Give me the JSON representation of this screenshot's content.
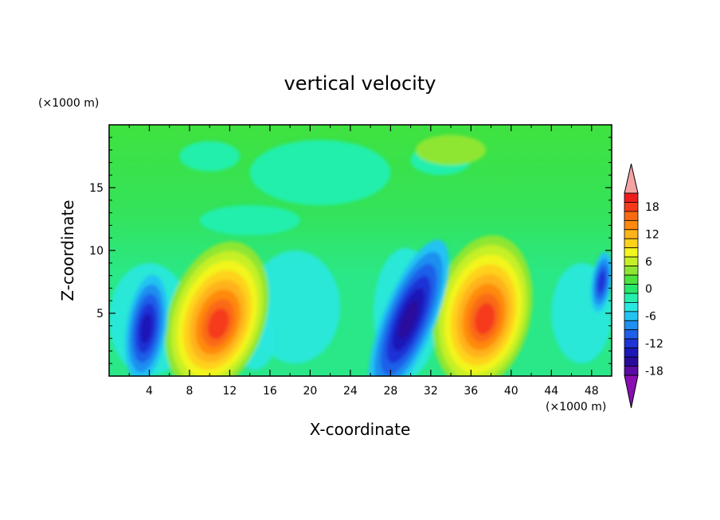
{
  "chart_data": {
    "type": "heatmap",
    "title": "vertical velocity",
    "xlabel": "X-coordinate",
    "ylabel": "Z-coordinate",
    "x_unit": "(×1000 m)",
    "y_unit": "(×1000 m)",
    "xlim": [
      0,
      50
    ],
    "ylim": [
      0,
      20
    ],
    "x_ticks": [
      "4",
      "8",
      "12",
      "16",
      "20",
      "24",
      "28",
      "32",
      "36",
      "40",
      "44",
      "48"
    ],
    "y_ticks": [
      "5",
      "10",
      "15"
    ],
    "colorbar": {
      "range": [
        -21,
        21
      ],
      "step": 2,
      "labels": [
        "18",
        "12",
        "6",
        "0",
        "-6",
        "-12",
        "-18"
      ],
      "colors": [
        "#f4a3a3",
        "#f01c1c",
        "#f53a1b",
        "#fa6a12",
        "#ff8a0f",
        "#ffb21a",
        "#ffd21a",
        "#f3f51f",
        "#c6f026",
        "#8ee631",
        "#4ee33c",
        "#28e869",
        "#24efac",
        "#2ae8e0",
        "#24c3f2",
        "#1f8ff0",
        "#1f5ee8",
        "#1f33d6",
        "#1c17b8",
        "#2a0a9c",
        "#5b0ca5",
        "#8a0fb0"
      ]
    },
    "features": [
      {
        "name": "updraft",
        "x": 10.2,
        "z": 4.2,
        "peak": 15
      },
      {
        "name": "updraft",
        "x": 37.0,
        "z": 4.5,
        "peak": 14
      },
      {
        "name": "downdraft",
        "x": 3.7,
        "z": 3.8,
        "peak": -12
      },
      {
        "name": "downdraft",
        "x": 29.8,
        "z": 4.5,
        "peak": -16
      },
      {
        "name": "downdraft",
        "x": 49.0,
        "z": 7.5,
        "peak": -9
      }
    ]
  }
}
